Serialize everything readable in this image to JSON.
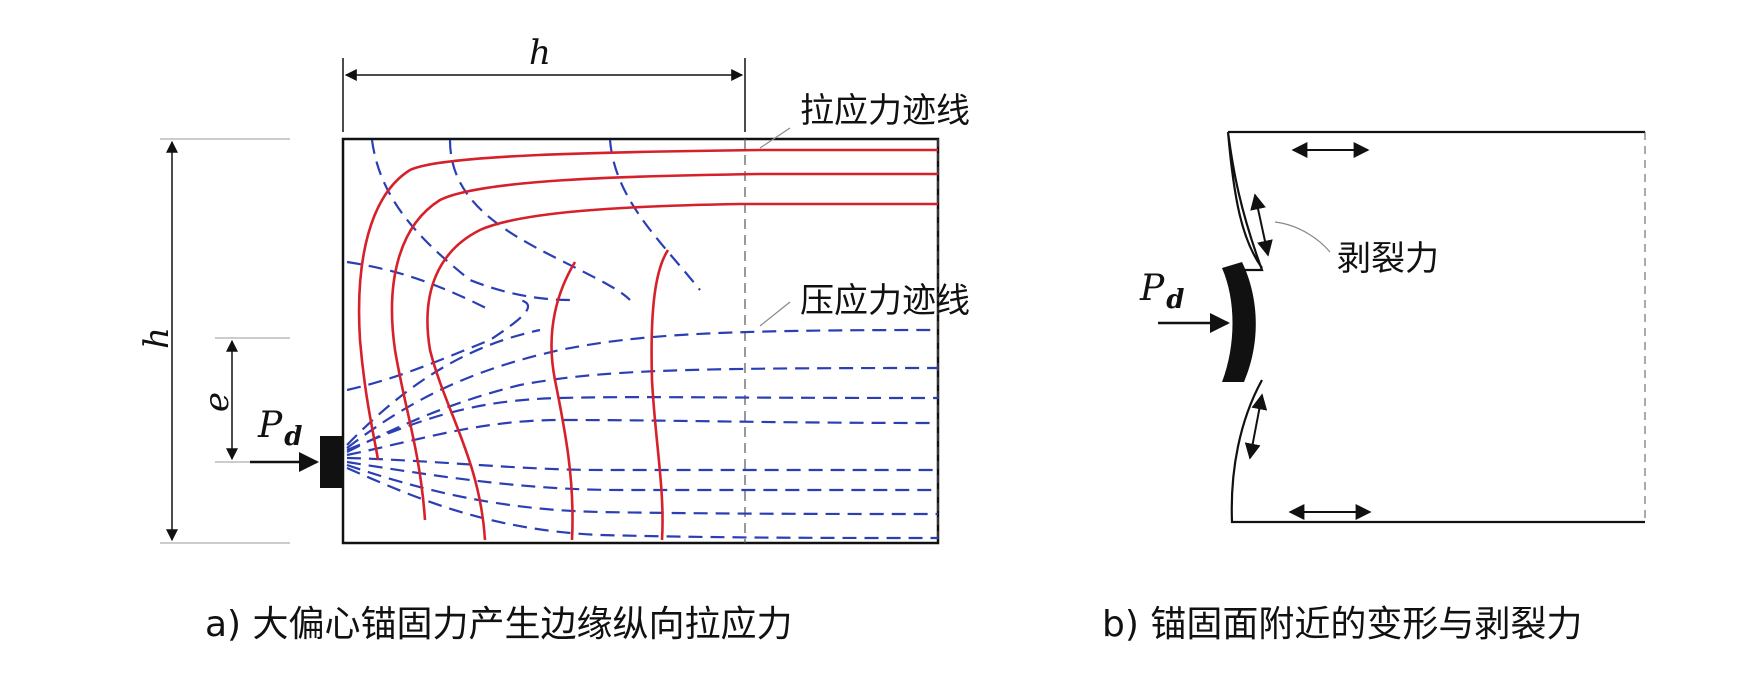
{
  "panel_a": {
    "dim_h_top": "h",
    "dim_h_left": "h",
    "dim_e": "e",
    "load_P": "P",
    "load_sub": "d",
    "tension_label": "拉应力迹线",
    "compression_label": "压应力迹线",
    "caption": "a) 大偏心锚固力产生边缘纵向拉应力"
  },
  "panel_b": {
    "load_P": "P",
    "load_sub": "d",
    "spalling_label": "剥裂力",
    "caption": "b) 锚固面附近的变形与剥裂力"
  },
  "colors": {
    "tension": "#d6202a",
    "compression": "#2b3fb5",
    "outline": "#111111"
  }
}
